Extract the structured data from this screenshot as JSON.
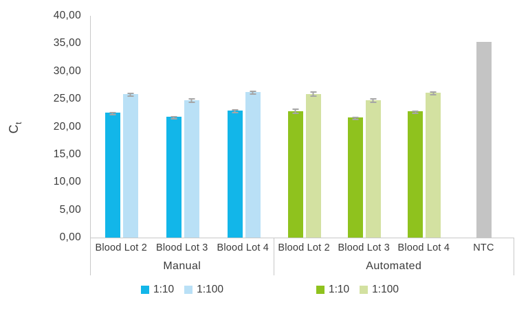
{
  "chart_data": {
    "type": "bar",
    "title": "",
    "ylabel": {
      "main": "C",
      "sub": "t"
    },
    "y_axis": {
      "min": 0,
      "max": 40,
      "step": 5,
      "grid": false,
      "tick_labels": [
        "0,00",
        "5,00",
        "10,00",
        "15,00",
        "20,00",
        "25,00",
        "30,00",
        "35,00",
        "40,00"
      ]
    },
    "colors": {
      "manual_1_10": "#12b6e9",
      "manual_1_100": "#b9e0f6",
      "auto_1_10": "#8fc21e",
      "auto_1_100": "#d3e1a1",
      "ntc": "#c4c4c4",
      "error_bar": "#a6a6a6",
      "axis_line": "#c8c8c8",
      "text": "#3a3a3a"
    },
    "groups": [
      {
        "label": "Manual",
        "categories": [
          "Blood Lot 2",
          "Blood Lot 3",
          "Blood Lot 4"
        ],
        "series": [
          {
            "name": "1:10",
            "color_key": "manual_1_10",
            "values": [
              22.5,
              21.8,
              22.9
            ],
            "errors": [
              0.2,
              0.15,
              0.25
            ]
          },
          {
            "name": "1:100",
            "color_key": "manual_1_100",
            "values": [
              25.9,
              24.8,
              26.2
            ],
            "errors": [
              0.25,
              0.3,
              0.3
            ]
          }
        ]
      },
      {
        "label": "Automated",
        "categories": [
          "Blood Lot 2",
          "Blood Lot 3",
          "Blood Lot 4",
          "NTC"
        ],
        "series": [
          {
            "name": "1:10",
            "color_key": "auto_1_10",
            "values": [
              22.8,
              21.7,
              22.8,
              null
            ],
            "errors": [
              0.5,
              0.15,
              0.15,
              null
            ]
          },
          {
            "name": "1:100",
            "color_key": "auto_1_100",
            "values": [
              25.9,
              24.8,
              26.1,
              null
            ],
            "errors": [
              0.55,
              0.3,
              0.25,
              null
            ]
          },
          {
            "name": "NTC",
            "color_key": "ntc",
            "values": [
              null,
              null,
              null,
              35.3
            ],
            "errors": [
              null,
              null,
              null,
              0
            ]
          }
        ]
      }
    ],
    "legend_clusters": [
      {
        "items": [
          {
            "label": "1:10",
            "color_key": "manual_1_10"
          },
          {
            "label": "1:100",
            "color_key": "manual_1_100"
          }
        ]
      },
      {
        "items": [
          {
            "label": "1:10",
            "color_key": "auto_1_10"
          },
          {
            "label": "1:100",
            "color_key": "auto_1_100"
          }
        ]
      }
    ]
  }
}
